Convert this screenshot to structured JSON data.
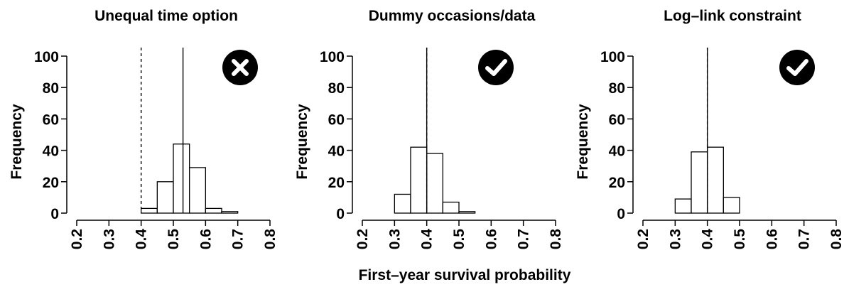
{
  "figure": {
    "xlabel": "First–year survival probability"
  },
  "chart_data": [
    {
      "type": "bar",
      "title": "Unequal time option",
      "ylabel": "Frequency",
      "xlabel": "",
      "xlim": [
        0.2,
        0.8
      ],
      "ylim": [
        0,
        100
      ],
      "xticks": [
        "0.2",
        "0.3",
        "0.4",
        "0.5",
        "0.6",
        "0.7",
        "0.8"
      ],
      "yticks": [
        "0",
        "20",
        "40",
        "60",
        "80",
        "100"
      ],
      "bins": [
        {
          "x0": 0.4,
          "x1": 0.45,
          "count": 3
        },
        {
          "x0": 0.45,
          "x1": 0.5,
          "count": 20
        },
        {
          "x0": 0.5,
          "x1": 0.55,
          "count": 44
        },
        {
          "x0": 0.55,
          "x1": 0.6,
          "count": 29
        },
        {
          "x0": 0.6,
          "x1": 0.65,
          "count": 3
        },
        {
          "x0": 0.65,
          "x1": 0.7,
          "count": 1
        }
      ],
      "true_value": 0.4,
      "estimate_mean": 0.53,
      "status_icon": "cross-icon",
      "status": "fail"
    },
    {
      "type": "bar",
      "title": "Dummy occasions/data",
      "ylabel": "Frequency",
      "xlabel": "",
      "xlim": [
        0.2,
        0.8
      ],
      "ylim": [
        0,
        100
      ],
      "xticks": [
        "0.2",
        "0.3",
        "0.4",
        "0.5",
        "0.6",
        "0.7",
        "0.8"
      ],
      "yticks": [
        "0",
        "20",
        "40",
        "60",
        "80",
        "100"
      ],
      "bins": [
        {
          "x0": 0.3,
          "x1": 0.35,
          "count": 12
        },
        {
          "x0": 0.35,
          "x1": 0.4,
          "count": 42
        },
        {
          "x0": 0.4,
          "x1": 0.45,
          "count": 38
        },
        {
          "x0": 0.45,
          "x1": 0.5,
          "count": 7
        },
        {
          "x0": 0.5,
          "x1": 0.55,
          "count": 1
        }
      ],
      "true_value": 0.4,
      "estimate_mean": 0.4,
      "status_icon": "check-icon",
      "status": "pass"
    },
    {
      "type": "bar",
      "title": "Log–link constraint",
      "ylabel": "Frequency",
      "xlabel": "",
      "xlim": [
        0.2,
        0.8
      ],
      "ylim": [
        0,
        100
      ],
      "xticks": [
        "0.2",
        "0.3",
        "0.4",
        "0.5",
        "0.6",
        "0.7",
        "0.8"
      ],
      "yticks": [
        "0",
        "20",
        "40",
        "60",
        "80",
        "100"
      ],
      "bins": [
        {
          "x0": 0.3,
          "x1": 0.35,
          "count": 9
        },
        {
          "x0": 0.35,
          "x1": 0.4,
          "count": 39
        },
        {
          "x0": 0.4,
          "x1": 0.45,
          "count": 42
        },
        {
          "x0": 0.45,
          "x1": 0.5,
          "count": 10
        }
      ],
      "true_value": 0.4,
      "estimate_mean": 0.4,
      "status_icon": "check-icon",
      "status": "pass"
    }
  ]
}
